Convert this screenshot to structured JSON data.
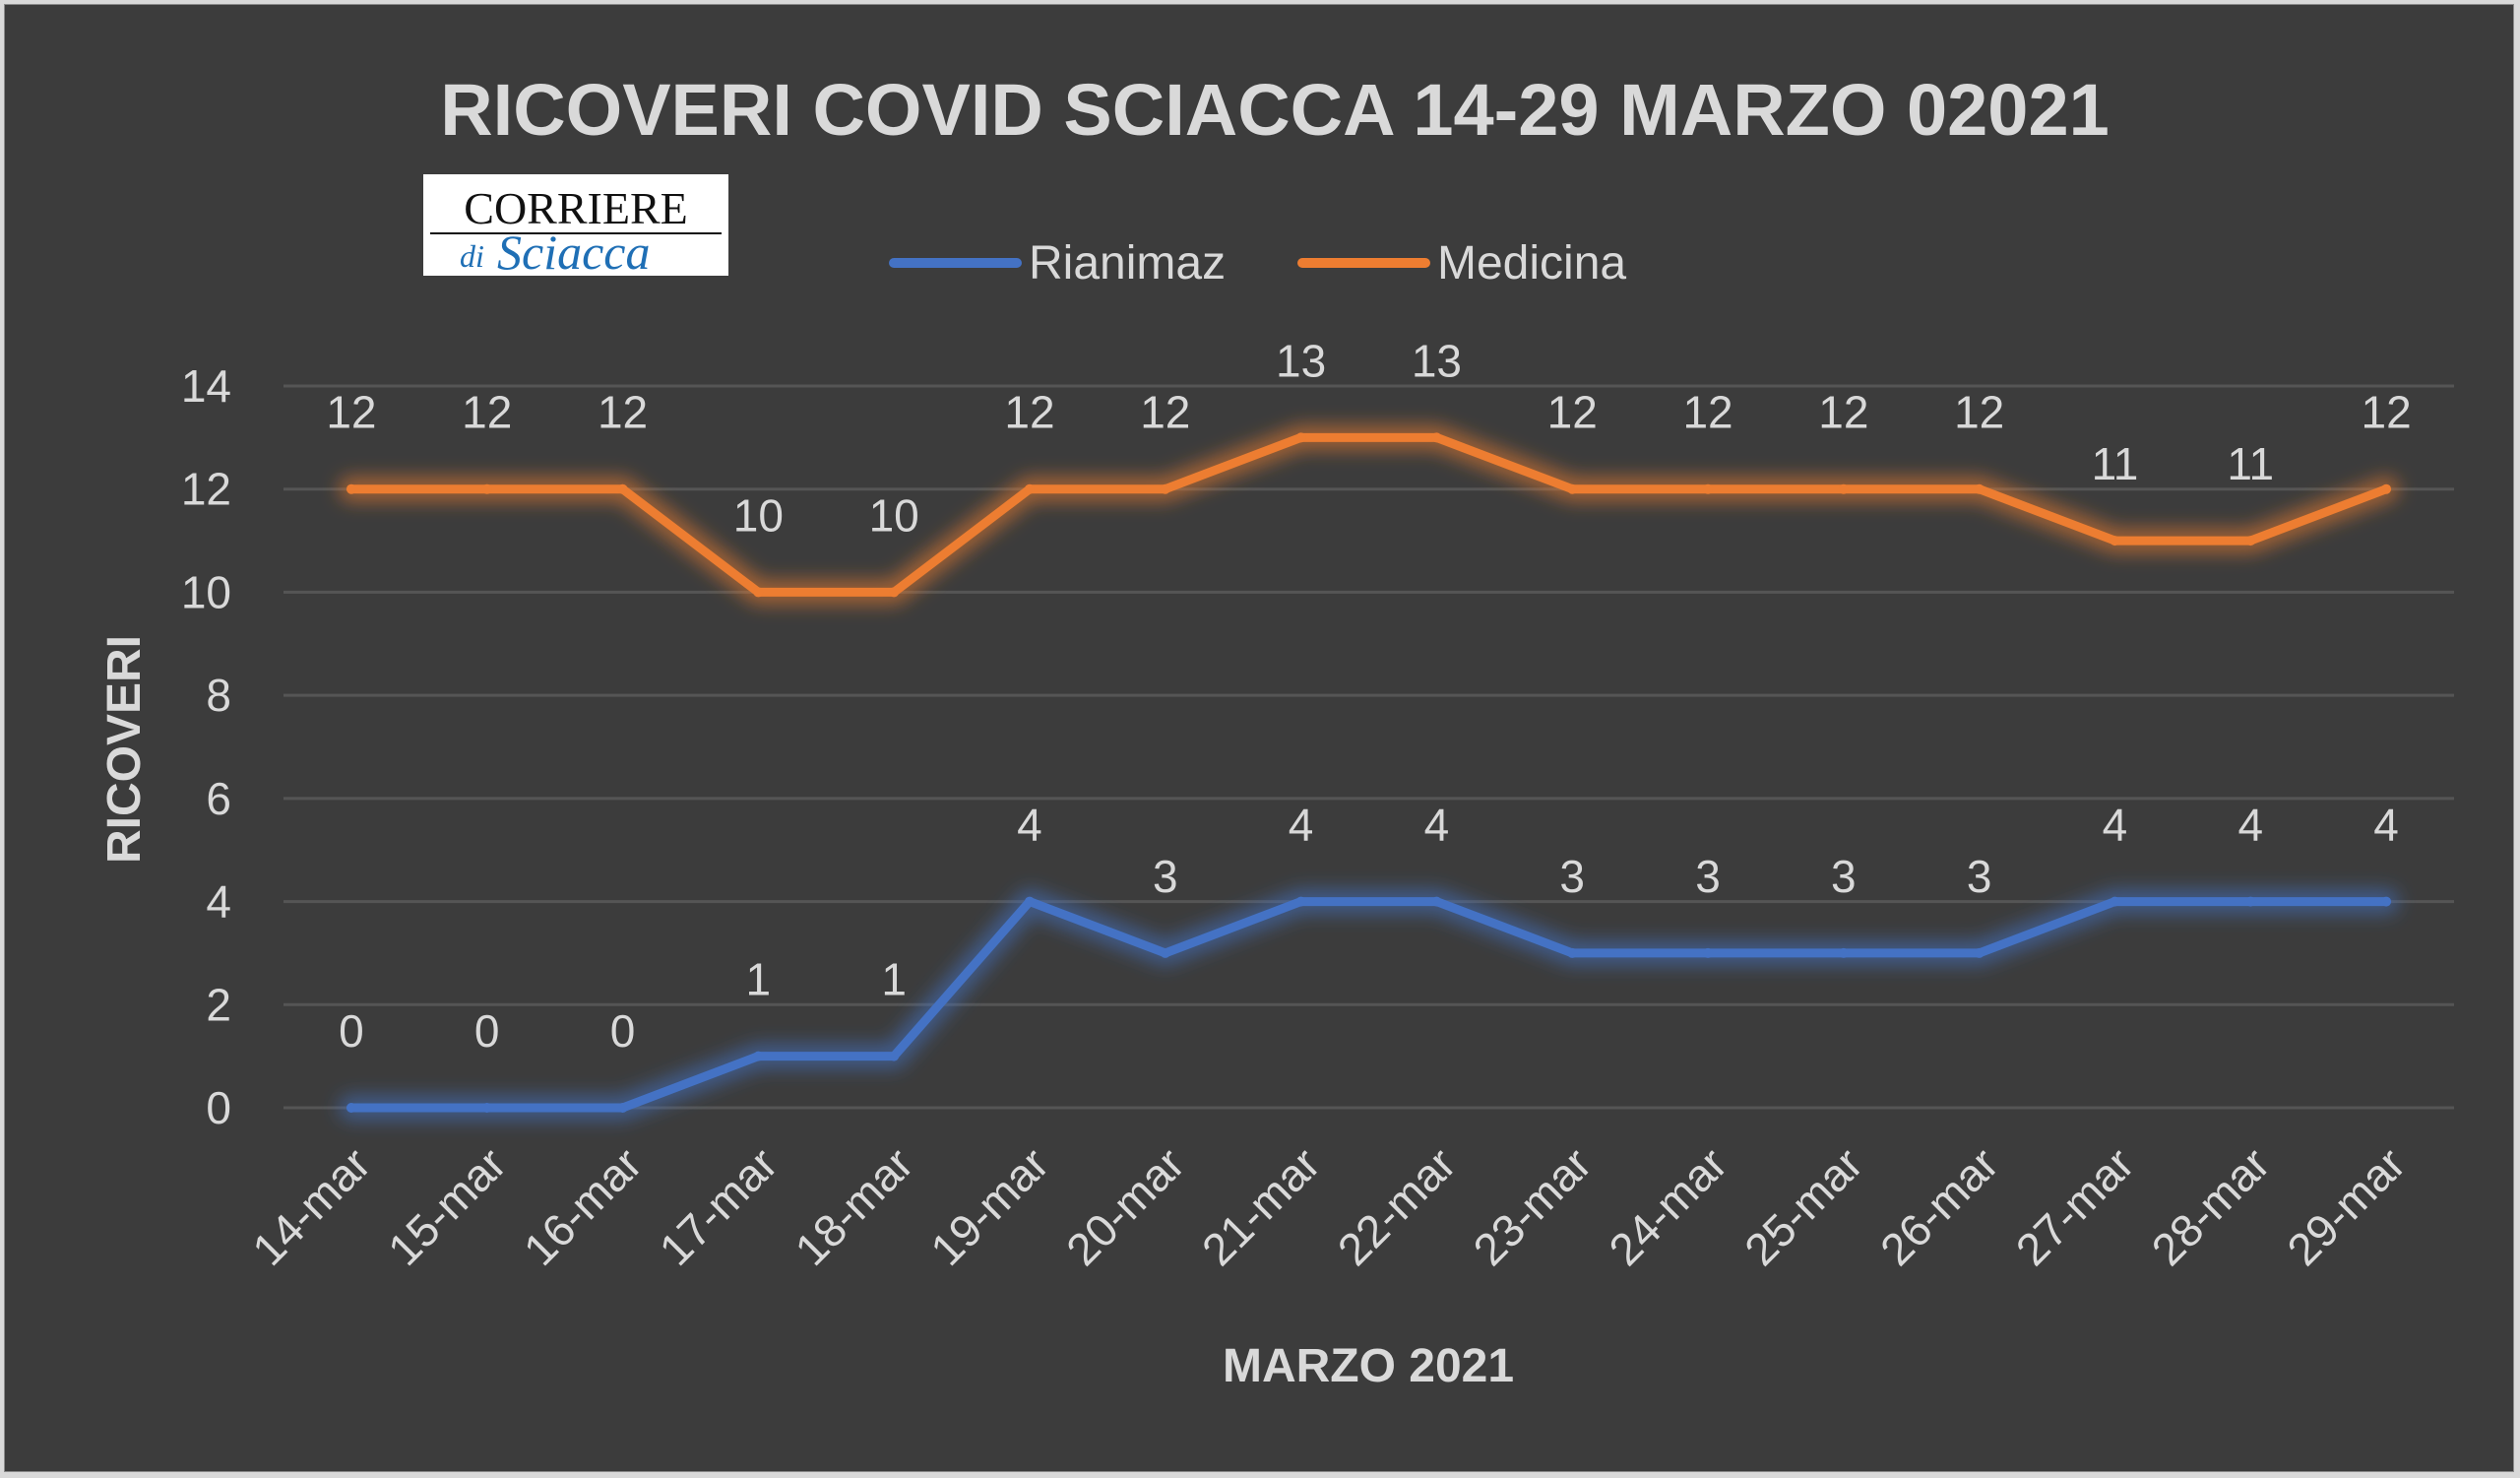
{
  "chart_data": {
    "type": "line",
    "title": "RICOVERI COVID SCIACCA 14-29 MARZO 02021",
    "xlabel": "MARZO 2021",
    "ylabel": "RICOVERI",
    "ylim": [
      0,
      14
    ],
    "yticks": [
      "0",
      "2",
      "4",
      "6",
      "8",
      "10",
      "12",
      "14"
    ],
    "grid": true,
    "legend_position": "top",
    "categories": [
      "14-mar",
      "15-mar",
      "16-mar",
      "17-mar",
      "18-mar",
      "19-mar",
      "20-mar",
      "21-mar",
      "22-mar",
      "23-mar",
      "24-mar",
      "25-mar",
      "26-mar",
      "27-mar",
      "28-mar",
      "29-mar"
    ],
    "series": [
      {
        "name": "Rianimaz",
        "color": "#4472c4",
        "values": [
          0,
          0,
          0,
          1,
          1,
          4,
          3,
          4,
          4,
          3,
          3,
          3,
          3,
          4,
          4,
          4
        ]
      },
      {
        "name": "Medicina",
        "color": "#ed7d31",
        "values": [
          12,
          12,
          12,
          10,
          10,
          12,
          12,
          13,
          13,
          12,
          12,
          12,
          12,
          11,
          11,
          12
        ]
      }
    ]
  },
  "logo": {
    "line1": "CORRIERE",
    "line2_prefix": "di",
    "line2": "Sciacca"
  }
}
